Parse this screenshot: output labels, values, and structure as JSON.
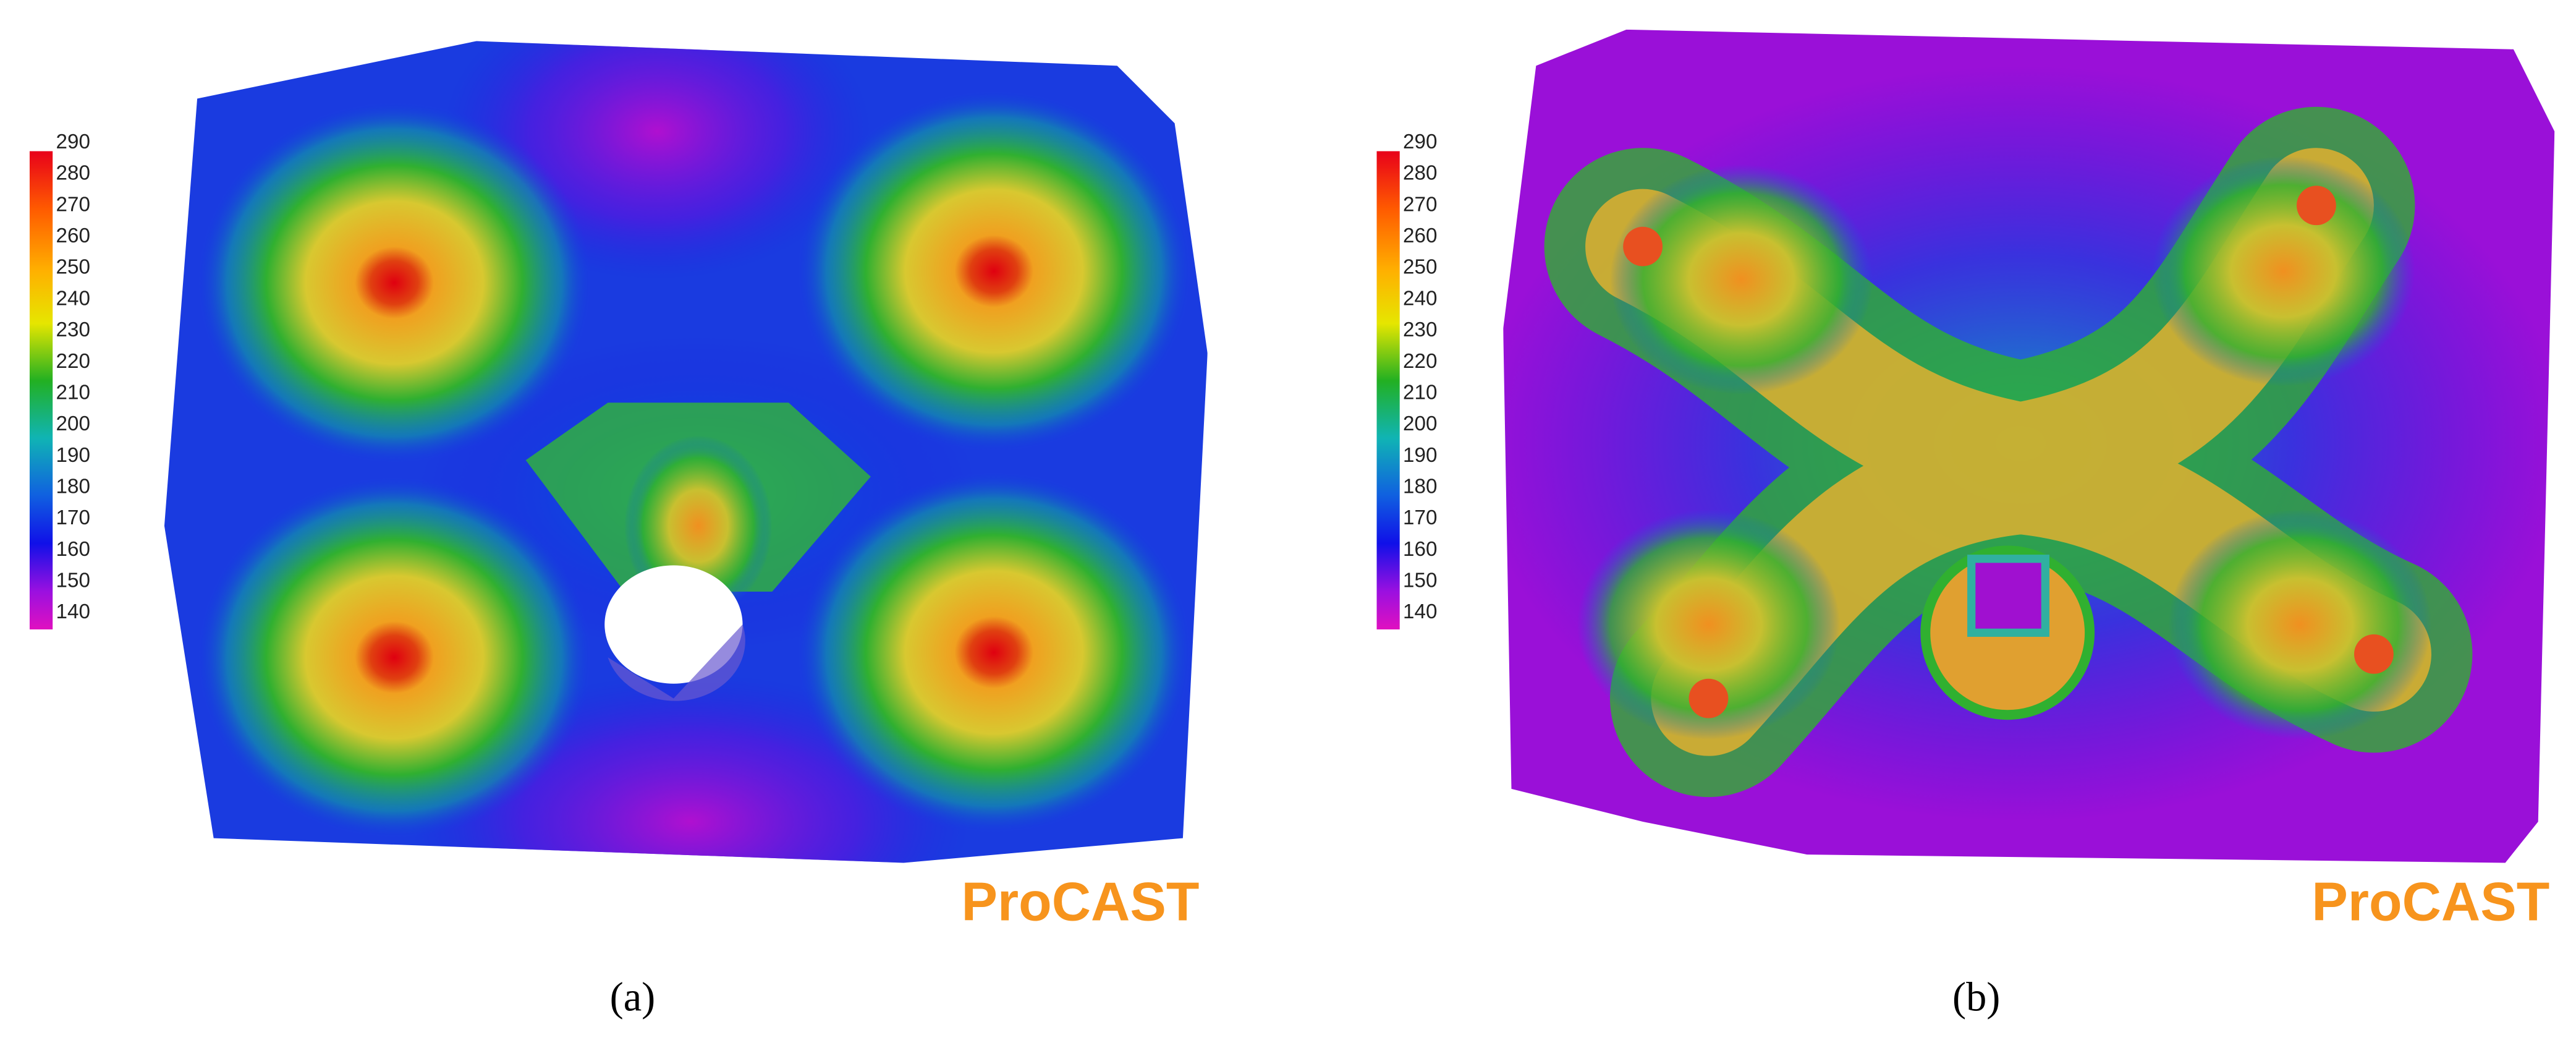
{
  "panels": [
    {
      "caption": "(a)",
      "watermark": "ProCAST",
      "colorbar": {
        "ticks": [
          290,
          280,
          270,
          260,
          250,
          240,
          230,
          220,
          210,
          200,
          190,
          180,
          170,
          160,
          150,
          140
        ]
      }
    },
    {
      "caption": "(b)",
      "watermark": "ProCAST",
      "colorbar": {
        "ticks": [
          290,
          280,
          270,
          260,
          250,
          240,
          230,
          220,
          210,
          200,
          190,
          180,
          170,
          160,
          150,
          140
        ]
      }
    }
  ]
}
